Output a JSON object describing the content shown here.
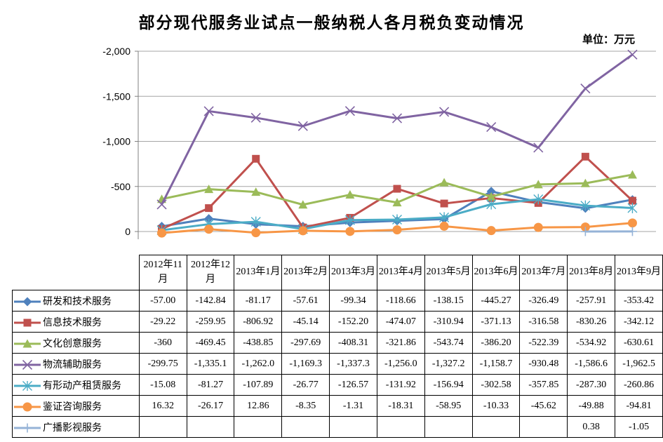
{
  "title": "部分现代服务业试点一般纳税人各月税负变动情况",
  "unit_label": "单位：万元",
  "chart_data": {
    "type": "line",
    "title": "部分现代服务业试点一般纳税人各月税负变动情况",
    "ylabel": "",
    "xlabel": "",
    "y_axis": {
      "inverted": true,
      "range_bottom": 0,
      "range_top": -2000,
      "ticks": [
        {
          "label": "-2,000",
          "value": -2000
        },
        {
          "label": "-1,500",
          "value": -1500
        },
        {
          "label": "-1,000",
          "value": -1000
        },
        {
          "label": "-500",
          "value": -500
        },
        {
          "label": "0",
          "value": 0
        }
      ]
    },
    "grid": true,
    "legend_position": "table-left-column",
    "x": [
      "2012年11月",
      "2012年12月",
      "2013年1月",
      "2013年2月",
      "2013年3月",
      "2013年4月",
      "2013年5月",
      "2013年6月",
      "2013年7月",
      "2013年8月",
      "2013年9月"
    ],
    "series": [
      {
        "name": "研发和技术服务",
        "marker": "diamond",
        "color": "#4F81BD",
        "values": [
          "-57.00",
          "-142.84",
          "-81.17",
          "-57.61",
          "-99.34",
          "-118.66",
          "-138.15",
          "-445.27",
          "-326.49",
          "-257.91",
          "-353.42"
        ]
      },
      {
        "name": "信息技术服务",
        "marker": "square",
        "color": "#C0504D",
        "values": [
          "-29.22",
          "-259.95",
          "-806.92",
          "-45.14",
          "-152.20",
          "-474.07",
          "-310.94",
          "-371.13",
          "-316.58",
          "-830.26",
          "-342.12"
        ]
      },
      {
        "name": "文化创意服务",
        "marker": "triangle",
        "color": "#9BBB59",
        "values": [
          "-360",
          "-469.45",
          "-438.85",
          "-297.69",
          "-408.31",
          "-321.86",
          "-543.74",
          "-386.20",
          "-522.39",
          "-534.92",
          "-630.61"
        ]
      },
      {
        "name": "物流辅助服务",
        "marker": "x",
        "color": "#8064A2",
        "values": [
          "-299.75",
          "-1,335.1",
          "-1,262.0",
          "-1,169.3",
          "-1,337.3",
          "-1,256.0",
          "-1,327.2",
          "-1,158.7",
          "-930.48",
          "-1,586.6",
          "-1,962.5"
        ]
      },
      {
        "name": "有形动产租赁服务",
        "marker": "star",
        "color": "#4BACC6",
        "values": [
          "-15.08",
          "-81.27",
          "-107.89",
          "-26.77",
          "-126.57",
          "-131.92",
          "-156.94",
          "-302.58",
          "-357.85",
          "-287.30",
          "-260.86"
        ]
      },
      {
        "name": "鉴证咨询服务",
        "marker": "circle",
        "color": "#F79646",
        "values": [
          "16.32",
          "-26.17",
          "12.86",
          "-8.35",
          "-1.31",
          "-18.31",
          "-58.95",
          "-10.33",
          "-45.62",
          "-49.88",
          "-94.81"
        ]
      },
      {
        "name": "广播影视服务",
        "marker": "plus",
        "color": "#95B3D7",
        "values": [
          "",
          "",
          "",
          "",
          "",
          "",
          "",
          "",
          "",
          "0.38",
          "-1.05"
        ]
      }
    ],
    "colors": {
      "gridline": "#a6a6a6",
      "axis": "#808080"
    }
  }
}
